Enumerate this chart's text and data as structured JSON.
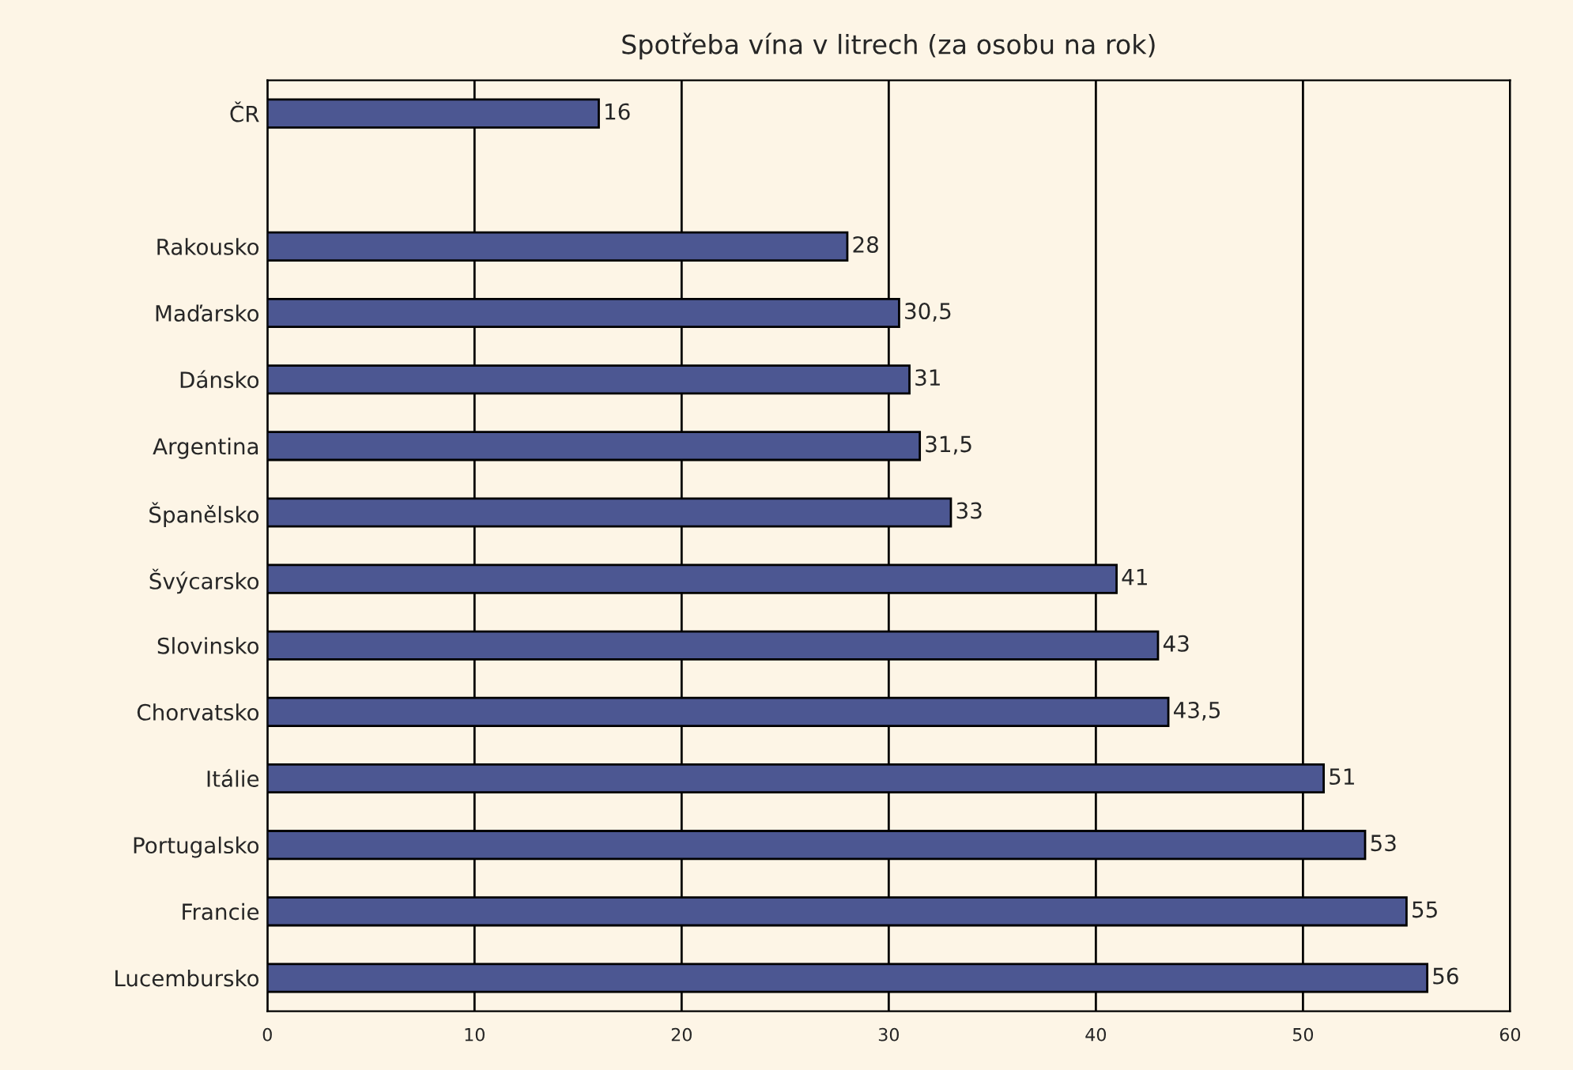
{
  "chart_data": {
    "type": "bar",
    "orientation": "horizontal",
    "title": "Spotřeba vína v litrech (za osobu na rok)",
    "categories": [
      "ČR",
      null,
      "Rakousko",
      "Maďarsko",
      "Dánsko",
      "Argentina",
      "Španělsko",
      "Švýcarsko",
      "Slovinsko",
      "Chorvatsko",
      "Itálie",
      "Portugalsko",
      "Francie",
      "Lucembursko"
    ],
    "values": [
      16,
      null,
      28,
      30.5,
      31,
      31.5,
      33,
      41,
      43,
      43.5,
      51,
      53,
      55,
      56
    ],
    "value_labels": [
      "16",
      null,
      "28",
      "30,5",
      "31",
      "31,5",
      "33",
      "41",
      "43",
      "43,5",
      "51",
      "53",
      "55",
      "56"
    ],
    "color": "#4c5792",
    "xlim": [
      0,
      60
    ],
    "xticks": [
      0,
      10,
      20,
      30,
      40,
      50,
      60
    ],
    "grid": "x",
    "legend": false
  }
}
